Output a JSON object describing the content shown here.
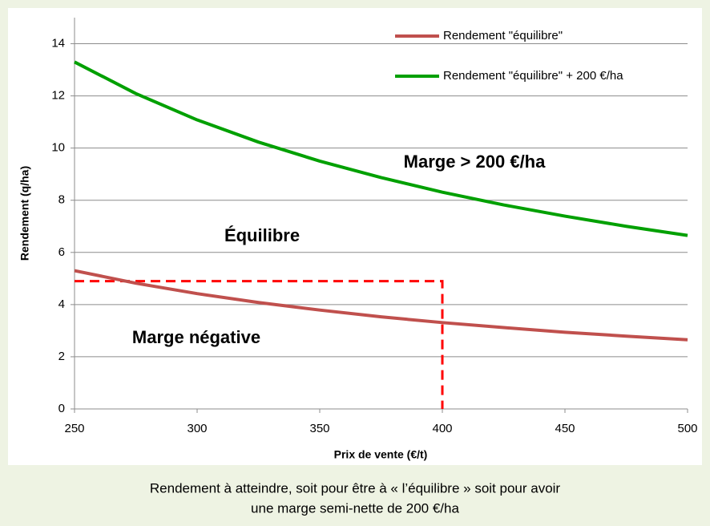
{
  "chart_data": {
    "type": "line",
    "y_label": "Rendement (q/ha)",
    "x_label": "Prix de vente (€/t)",
    "caption": [
      "Rendement à atteindre, soit  pour être à « l’équilibre » soit pour avoir",
      "une marge semi-nette de 200 €/ha"
    ],
    "x": [
      250,
      275,
      300,
      325,
      350,
      375,
      400,
      425,
      450,
      475,
      500
    ],
    "series": [
      {
        "name": "Rendement \"équilibre\"",
        "color": "#c0504d",
        "values": [
          5.3,
          4.82,
          4.42,
          4.08,
          3.79,
          3.53,
          3.31,
          3.12,
          2.94,
          2.79,
          2.65
        ]
      },
      {
        "name": "Rendement  \"équilibre\" +  200 €/ha",
        "color": "#00a000",
        "values": [
          13.3,
          12.09,
          11.08,
          10.23,
          9.5,
          8.87,
          8.31,
          7.82,
          7.39,
          7.0,
          6.65
        ]
      }
    ],
    "annotations": [
      {
        "text": "Marge > 200 €/ha",
        "color": "#00a000"
      },
      {
        "text": "Équilibre",
        "color": "#000000"
      },
      {
        "text": "Marge négative",
        "color": "#ff0000"
      }
    ],
    "reference": {
      "x": 400,
      "y": 4.9,
      "color": "#ff0000"
    },
    "xlim": [
      250,
      500
    ],
    "xticks": [
      250,
      300,
      350,
      400,
      450,
      500
    ],
    "ylim": [
      0,
      15
    ],
    "yticks": [
      0,
      2,
      4,
      6,
      8,
      10,
      12,
      14
    ],
    "grid": true
  }
}
